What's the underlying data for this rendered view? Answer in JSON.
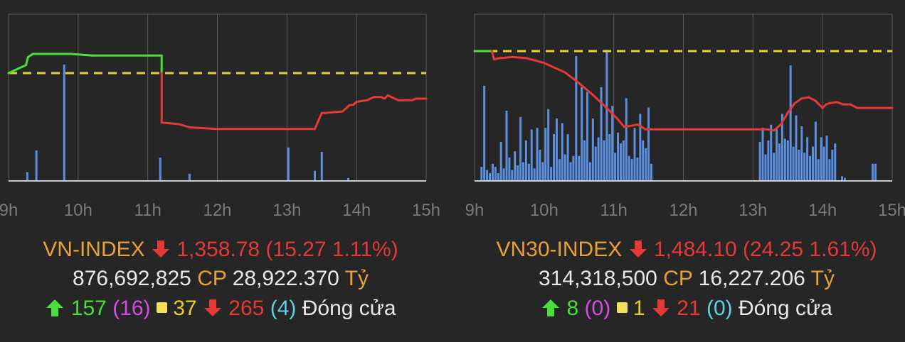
{
  "colors": {
    "background": "#262626",
    "grid": "#5a5a5a",
    "axis": "#c9c9d4",
    "reference": "#e8cf2a",
    "index_down": "#e53935",
    "index_up": "#4ade3c",
    "volume": "#5b8fe0",
    "tick_text": "#7a7a7a",
    "title": "#e8a13a"
  },
  "chart_data": [
    {
      "type": "line",
      "x_axis": {
        "ticks": [
          "9h",
          "10h",
          "11h",
          "12h",
          "13h",
          "14h",
          "15h"
        ]
      },
      "reference_line": "dashed",
      "series": [
        {
          "kind": "index-line",
          "points": [
            [
              9.0,
              0.0
            ],
            [
              9.25,
              0.05
            ],
            [
              9.28,
              0.1
            ],
            [
              9.35,
              0.12
            ],
            [
              9.9,
              0.12
            ],
            [
              10.2,
              0.11
            ],
            [
              11.2,
              0.11
            ],
            [
              11.2,
              0.0
            ],
            [
              11.2,
              -0.31
            ],
            [
              11.45,
              -0.32
            ],
            [
              11.6,
              -0.34
            ],
            [
              12.0,
              -0.35
            ],
            [
              12.5,
              -0.35
            ],
            [
              13.0,
              -0.35
            ],
            [
              13.4,
              -0.35
            ],
            [
              13.45,
              -0.3
            ],
            [
              13.5,
              -0.25
            ],
            [
              13.55,
              -0.25
            ],
            [
              13.8,
              -0.24
            ],
            [
              13.9,
              -0.2
            ],
            [
              13.95,
              -0.2
            ],
            [
              14.0,
              -0.18
            ],
            [
              14.15,
              -0.17
            ],
            [
              14.25,
              -0.15
            ],
            [
              14.35,
              -0.15
            ],
            [
              14.4,
              -0.16
            ],
            [
              14.45,
              -0.14
            ],
            [
              14.5,
              -0.15
            ],
            [
              14.6,
              -0.17
            ],
            [
              14.8,
              -0.17
            ],
            [
              14.85,
              -0.16
            ],
            [
              15.0,
              -0.16
            ]
          ]
        },
        {
          "kind": "volume-bars",
          "bars": [
            [
              9.27,
              0.06
            ],
            [
              9.4,
              0.21
            ],
            [
              9.8,
              0.8
            ],
            [
              11.18,
              0.16
            ],
            [
              11.6,
              0.05
            ],
            [
              13.02,
              0.23
            ],
            [
              13.4,
              0.07
            ],
            [
              13.5,
              0.2
            ],
            [
              13.88,
              0.02
            ]
          ]
        }
      ]
    },
    {
      "type": "line",
      "x_axis": {
        "ticks": [
          "9h",
          "10h",
          "11h",
          "12h",
          "13h",
          "14h",
          "15h"
        ]
      },
      "reference_line": "dashed",
      "series": [
        {
          "kind": "index-line",
          "points": [
            [
              9.0,
              0.0
            ],
            [
              9.25,
              0.0
            ],
            [
              9.28,
              -0.07
            ],
            [
              9.35,
              -0.06
            ],
            [
              9.55,
              -0.05
            ],
            [
              9.75,
              -0.06
            ],
            [
              10.0,
              -0.1
            ],
            [
              10.3,
              -0.18
            ],
            [
              10.5,
              -0.27
            ],
            [
              10.7,
              -0.37
            ],
            [
              10.9,
              -0.48
            ],
            [
              11.05,
              -0.57
            ],
            [
              11.15,
              -0.64
            ],
            [
              11.35,
              -0.62
            ],
            [
              11.45,
              -0.66
            ],
            [
              11.7,
              -0.66
            ],
            [
              12.0,
              -0.66
            ],
            [
              12.5,
              -0.66
            ],
            [
              13.0,
              -0.66
            ],
            [
              13.2,
              -0.66
            ],
            [
              13.3,
              -0.67
            ],
            [
              13.4,
              -0.62
            ],
            [
              13.5,
              -0.52
            ],
            [
              13.6,
              -0.44
            ],
            [
              13.7,
              -0.4
            ],
            [
              13.8,
              -0.39
            ],
            [
              13.9,
              -0.42
            ],
            [
              14.0,
              -0.48
            ],
            [
              14.05,
              -0.45
            ],
            [
              14.1,
              -0.44
            ],
            [
              14.2,
              -0.43
            ],
            [
              14.3,
              -0.45
            ],
            [
              14.4,
              -0.45
            ],
            [
              14.5,
              -0.48
            ],
            [
              14.6,
              -0.48
            ],
            [
              15.0,
              -0.48
            ]
          ]
        },
        {
          "kind": "volume-bars",
          "bars": [
            [
              9.1,
              0.09
            ],
            [
              9.14,
              0.61
            ],
            [
              9.18,
              0.07
            ],
            [
              9.22,
              0.05
            ],
            [
              9.26,
              0.11
            ],
            [
              9.3,
              0.09
            ],
            [
              9.34,
              0.05
            ],
            [
              9.38,
              0.25
            ],
            [
              9.42,
              0.08
            ],
            [
              9.46,
              0.45
            ],
            [
              9.5,
              0.15
            ],
            [
              9.54,
              0.07
            ],
            [
              9.58,
              0.19
            ],
            [
              9.62,
              0.1
            ],
            [
              9.66,
              0.41
            ],
            [
              9.7,
              0.12
            ],
            [
              9.74,
              0.26
            ],
            [
              9.78,
              0.11
            ],
            [
              9.82,
              0.33
            ],
            [
              9.86,
              0.08
            ],
            [
              9.9,
              0.34
            ],
            [
              9.94,
              0.2
            ],
            [
              9.98,
              0.12
            ],
            [
              10.02,
              0.34
            ],
            [
              10.06,
              0.46
            ],
            [
              10.1,
              0.09
            ],
            [
              10.14,
              0.3
            ],
            [
              10.18,
              0.4
            ],
            [
              10.22,
              0.14
            ],
            [
              10.26,
              0.37
            ],
            [
              10.3,
              0.17
            ],
            [
              10.34,
              0.3
            ],
            [
              10.38,
              0.12
            ],
            [
              10.42,
              0.16
            ],
            [
              10.46,
              0.8
            ],
            [
              10.5,
              0.16
            ],
            [
              10.54,
              0.6
            ],
            [
              10.58,
              0.26
            ],
            [
              10.62,
              0.57
            ],
            [
              10.66,
              0.12
            ],
            [
              10.7,
              0.4
            ],
            [
              10.74,
              0.22
            ],
            [
              10.78,
              0.28
            ],
            [
              10.82,
              0.6
            ],
            [
              10.86,
              0.26
            ],
            [
              10.9,
              0.84
            ],
            [
              10.94,
              0.3
            ],
            [
              10.98,
              0.48
            ],
            [
              11.02,
              0.18
            ],
            [
              11.06,
              0.31
            ],
            [
              11.1,
              0.24
            ],
            [
              11.14,
              0.26
            ],
            [
              11.18,
              0.53
            ],
            [
              11.22,
              0.16
            ],
            [
              11.26,
              0.14
            ],
            [
              11.3,
              0.34
            ],
            [
              11.34,
              0.15
            ],
            [
              11.38,
              0.43
            ],
            [
              11.42,
              0.26
            ],
            [
              11.46,
              0.21
            ],
            [
              11.5,
              0.47
            ],
            [
              11.54,
              0.11
            ],
            [
              13.1,
              0.25
            ],
            [
              13.14,
              0.34
            ],
            [
              13.18,
              0.17
            ],
            [
              13.22,
              0.26
            ],
            [
              13.26,
              0.36
            ],
            [
              13.3,
              0.18
            ],
            [
              13.34,
              0.34
            ],
            [
              13.38,
              0.24
            ],
            [
              13.42,
              0.43
            ],
            [
              13.46,
              0.27
            ],
            [
              13.5,
              0.26
            ],
            [
              13.54,
              0.74
            ],
            [
              13.58,
              0.22
            ],
            [
              13.62,
              0.42
            ],
            [
              13.66,
              0.2
            ],
            [
              13.7,
              0.35
            ],
            [
              13.74,
              0.18
            ],
            [
              13.78,
              0.28
            ],
            [
              13.82,
              0.16
            ],
            [
              13.86,
              0.22
            ],
            [
              13.9,
              0.38
            ],
            [
              13.94,
              0.14
            ],
            [
              13.98,
              0.28
            ],
            [
              14.02,
              0.22
            ],
            [
              14.06,
              0.29
            ],
            [
              14.1,
              0.14
            ],
            [
              14.14,
              0.2
            ],
            [
              14.18,
              0.24
            ],
            [
              14.28,
              0.03
            ],
            [
              14.32,
              0.02
            ],
            [
              14.72,
              0.11
            ],
            [
              14.76,
              0.11
            ]
          ]
        }
      ]
    }
  ],
  "left": {
    "index_name": "VN-INDEX",
    "index_value": "1,358.78",
    "change": "(15.27 1.11%)",
    "volume": "876,692,825",
    "volume_unit": "CP",
    "value": "28,922.370",
    "value_unit": "Tỷ",
    "advancers": "157",
    "ceiling": "(16)",
    "unchanged": "37",
    "decliners": "265",
    "floor": "(4)",
    "status": "Đóng cửa"
  },
  "right": {
    "index_name": "VN30-INDEX",
    "index_value": "1,484.10",
    "change": "(24.25 1.61%)",
    "volume": "314,318,500",
    "volume_unit": "CP",
    "value": "16,227.206",
    "value_unit": "Tỷ",
    "advancers": "8",
    "ceiling": "(0)",
    "unchanged": "1",
    "decliners": "21",
    "floor": "(0)",
    "status": "Đóng cửa"
  }
}
